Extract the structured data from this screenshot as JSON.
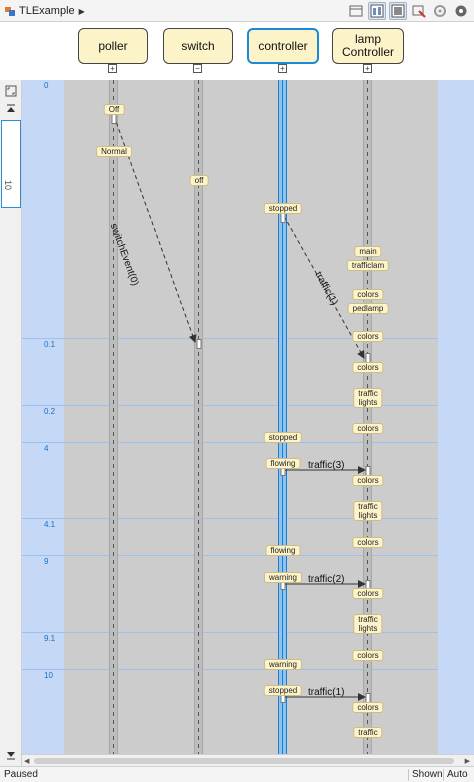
{
  "breadcrumb": {
    "model": "TLExample"
  },
  "toolbar": {
    "items": [
      "layout-icon",
      "timeline-icon",
      "compact-icon",
      "filter-icon",
      "settings-icon",
      "help-icon"
    ]
  },
  "lifelines": [
    {
      "id": "poller",
      "label": "poller",
      "expander": "+"
    },
    {
      "id": "switch",
      "label": "switch",
      "expander": "−"
    },
    {
      "id": "controller",
      "label": "controller",
      "expander": "+",
      "selected": true
    },
    {
      "id": "lamp",
      "label": "lamp\nController",
      "expander": "+"
    }
  ],
  "time_labels": [
    "0",
    "0.1",
    "0.2",
    "4",
    "4.1",
    "9",
    "9.1",
    "10"
  ],
  "states": {
    "off_poller": "Off",
    "normal": "Normal",
    "off_switch": "off",
    "stopped1": "stopped",
    "main": "main",
    "trafficlam": "trafficlam",
    "colors1": "colors",
    "pedlamp": "pedlamp",
    "colors2": "colors",
    "colors3": "colors",
    "traffic1": "traffic\nlights",
    "colors4": "colors",
    "stopped2": "stopped",
    "flowing1": "flowing",
    "colors5": "colors",
    "traffic2": "traffic\nlights",
    "colors6": "colors",
    "flowing2": "flowing",
    "warning1": "warning",
    "colors7": "colors",
    "traffic3": "traffic\nlights",
    "colors8": "colors",
    "warning2": "warning",
    "stopped3": "stopped",
    "colors9": "colors",
    "traffic4": "traffic"
  },
  "messages": {
    "switch_event": "switchEvent(0)",
    "traffic1": "traffic(1)",
    "traffic3": "traffic(3)",
    "traffic2": "traffic(2)",
    "traffic1b": "traffic(1)"
  },
  "ruler": {
    "slider_label": "10"
  },
  "status": {
    "state": "Paused",
    "shown": "Shown",
    "auto": "Auto"
  },
  "colors": {
    "accent": "#1a8ad8",
    "state_fill": "#fdf3c9",
    "lane": "#cccccc",
    "canvas": "#c5d9f6"
  }
}
